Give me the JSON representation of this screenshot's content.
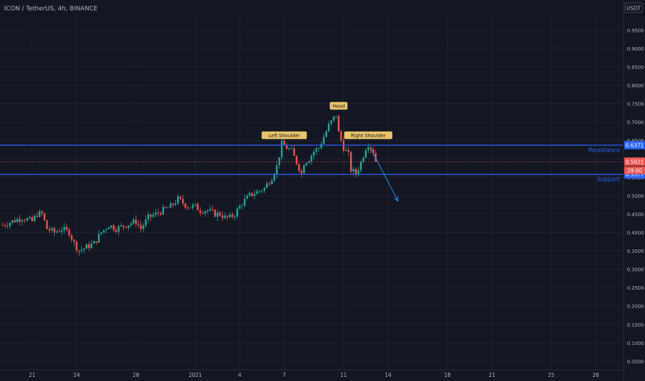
{
  "header": {
    "symbol_line": "ICON / TetherUS, 4h, BINANCE",
    "currency_badge": "USDT"
  },
  "colors": {
    "background": "#131722",
    "grid": "#1f2330",
    "up": "#26a69a",
    "down": "#ef5350",
    "level_line": "#2962ff",
    "label_text": "#2962ff",
    "badge": "#e9c46a",
    "arrow": "#2196f3"
  },
  "chart_data": {
    "type": "candlestick",
    "title": "ICON / TetherUS, 4h, BINANCE",
    "ylim": [
      0.03,
      0.99
    ],
    "y_ticks": [
      "0.9500",
      "0.9000",
      "0.8500",
      "0.8000",
      "0.7500",
      "0.7000",
      "0.6500",
      "0.6000",
      "0.5500",
      "0.5000",
      "0.4500",
      "0.4000",
      "0.3500",
      "0.3000",
      "0.2500",
      "0.2000",
      "0.1500",
      "0.1000",
      "0.0500"
    ],
    "x_ticks": [
      {
        "label": "21",
        "idx": 12
      },
      {
        "label": "24",
        "idx": 30
      },
      {
        "label": "28",
        "idx": 54
      },
      {
        "label": "2021",
        "idx": 78
      },
      {
        "label": "4",
        "idx": 96
      },
      {
        "label": "7",
        "idx": 114
      },
      {
        "label": "11",
        "idx": 138
      },
      {
        "label": "14",
        "idx": 156
      },
      {
        "label": "18",
        "idx": 180
      },
      {
        "label": "21",
        "idx": 198
      },
      {
        "label": "25",
        "idx": 222
      },
      {
        "label": "28",
        "idx": 240
      }
    ],
    "x_range": [
      -1,
      251
    ],
    "waypoints": [
      [
        0,
        0.42
      ],
      [
        4,
        0.43
      ],
      [
        8,
        0.44
      ],
      [
        12,
        0.43
      ],
      [
        14,
        0.45
      ],
      [
        16,
        0.45
      ],
      [
        18,
        0.41
      ],
      [
        21,
        0.4
      ],
      [
        24,
        0.41
      ],
      [
        27,
        0.4
      ],
      [
        29,
        0.37
      ],
      [
        31,
        0.35
      ],
      [
        34,
        0.36
      ],
      [
        37,
        0.37
      ],
      [
        40,
        0.4
      ],
      [
        43,
        0.42
      ],
      [
        46,
        0.41
      ],
      [
        50,
        0.42
      ],
      [
        54,
        0.43
      ],
      [
        56,
        0.41
      ],
      [
        59,
        0.44
      ],
      [
        62,
        0.45
      ],
      [
        65,
        0.46
      ],
      [
        68,
        0.47
      ],
      [
        71,
        0.49
      ],
      [
        73,
        0.48
      ],
      [
        75,
        0.47
      ],
      [
        78,
        0.47
      ],
      [
        80,
        0.46
      ],
      [
        83,
        0.46
      ],
      [
        86,
        0.45
      ],
      [
        88,
        0.45
      ],
      [
        90,
        0.44
      ],
      [
        92,
        0.44
      ],
      [
        94,
        0.45
      ],
      [
        97,
        0.48
      ],
      [
        100,
        0.5
      ],
      [
        103,
        0.51
      ],
      [
        106,
        0.52
      ],
      [
        109,
        0.55
      ],
      [
        111,
        0.58
      ],
      [
        113,
        0.64
      ],
      [
        115,
        0.63
      ],
      [
        117,
        0.62
      ],
      [
        119,
        0.59
      ],
      [
        121,
        0.56
      ],
      [
        122,
        0.59
      ],
      [
        124,
        0.6
      ],
      [
        126,
        0.62
      ],
      [
        128,
        0.63
      ],
      [
        130,
        0.66
      ],
      [
        132,
        0.69
      ],
      [
        134,
        0.71
      ],
      [
        135,
        0.72
      ],
      [
        136,
        0.67
      ],
      [
        138,
        0.63
      ],
      [
        140,
        0.61
      ],
      [
        141,
        0.57
      ],
      [
        143,
        0.56
      ],
      [
        145,
        0.59
      ],
      [
        147,
        0.63
      ],
      [
        148,
        0.64
      ],
      [
        150,
        0.62
      ],
      [
        151,
        0.6
      ]
    ],
    "series": [
      {
        "name": "",
        "type": "candles"
      }
    ],
    "levels": [
      {
        "value": 0.6371,
        "label": "Resistance",
        "price_label": "0.6371"
      },
      {
        "value": 0.5577,
        "label": "Support",
        "price_label": "0.5577"
      }
    ],
    "last_price": {
      "value": 0.5921,
      "label": "0.5921",
      "countdown": "29:00"
    },
    "annotations": [
      {
        "text": "Left Shoulder",
        "idx": 114,
        "value": 0.648
      },
      {
        "text": "Head",
        "idx": 136,
        "value": 0.728
      },
      {
        "text": "Right Shoulder",
        "idx": 148,
        "value": 0.648
      }
    ],
    "projection": {
      "from": [
        149,
        0.628
      ],
      "to": [
        160,
        0.485
      ]
    }
  }
}
